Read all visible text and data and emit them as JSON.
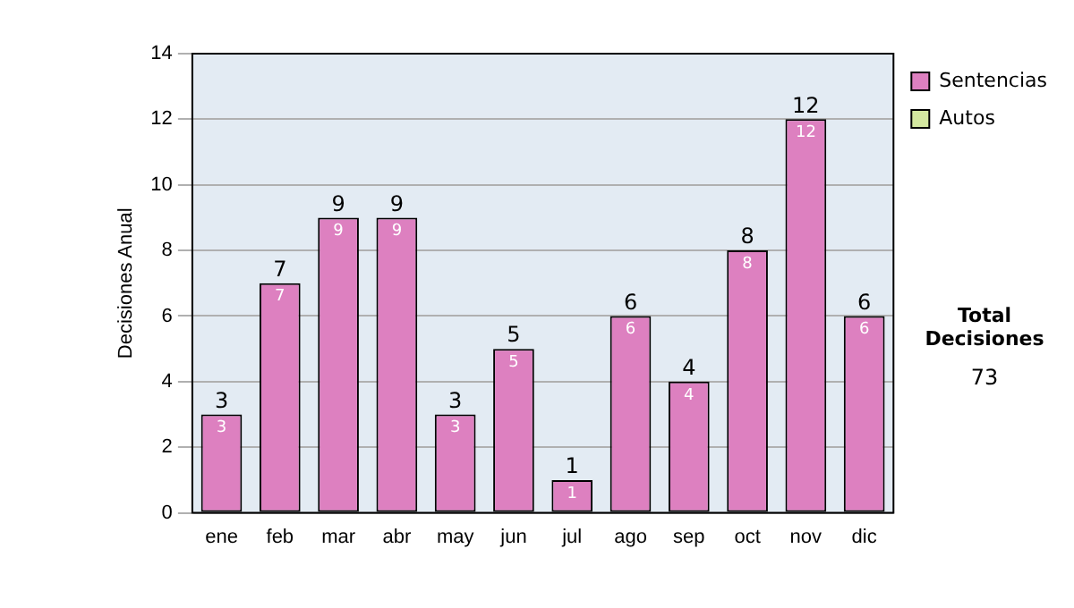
{
  "chart_data": {
    "type": "bar",
    "stacked": true,
    "ylabel": "Decisiones Anual",
    "categories": [
      "ene",
      "feb",
      "mar",
      "abr",
      "may",
      "jun",
      "jul",
      "ago",
      "sep",
      "oct",
      "nov",
      "dic"
    ],
    "series": [
      {
        "name": "Sentencias",
        "color": "#dd80c0",
        "values": [
          3,
          7,
          9,
          9,
          3,
          5,
          1,
          6,
          4,
          8,
          12,
          6
        ],
        "value_labels": [
          "3",
          "7",
          "9",
          "9",
          "3",
          "5",
          "1",
          "6",
          "4",
          "8",
          "12",
          "6"
        ]
      },
      {
        "name": "Autos",
        "color": "#d4e8a0",
        "values": [
          0,
          0,
          0,
          0,
          0,
          0,
          0,
          0,
          0,
          0,
          0,
          0
        ]
      }
    ],
    "totals": [
      "3",
      "7",
      "9",
      "9",
      "3",
      "5",
      "1",
      "6",
      "4",
      "8",
      "12",
      "6"
    ],
    "ylim": [
      0,
      14
    ],
    "yticks": [
      0,
      2,
      4,
      6,
      8,
      10,
      12,
      14
    ],
    "grid": "y",
    "legend": "right",
    "annotations": [
      "Total Decisiones",
      "73"
    ]
  }
}
